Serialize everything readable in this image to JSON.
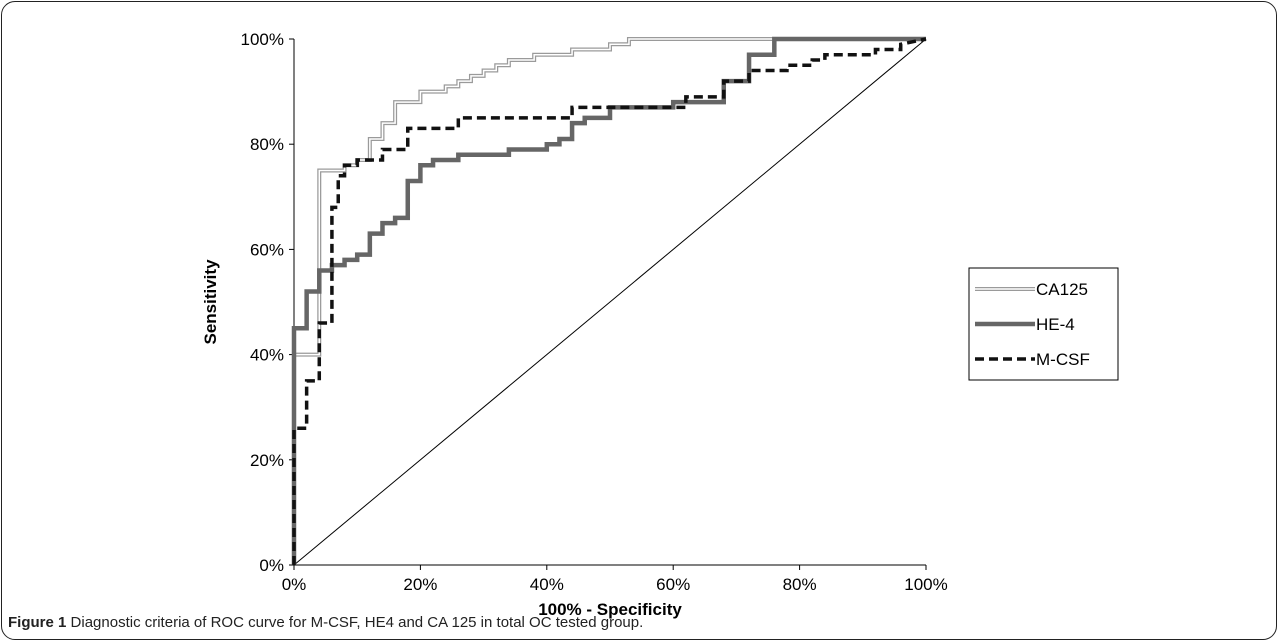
{
  "caption": {
    "label": "Figure 1",
    "text": "Diagnostic criteria of ROC curve for M-CSF, HE4 and CA 125 in total OC tested group."
  },
  "chart_data": {
    "type": "line",
    "xlabel": "100% - Specificity",
    "ylabel": "Sensitivity",
    "xlim": [
      0,
      100
    ],
    "ylim": [
      0,
      100
    ],
    "xticks": [
      "0%",
      "20%",
      "40%",
      "60%",
      "80%",
      "100%"
    ],
    "yticks": [
      "0%",
      "20%",
      "40%",
      "60%",
      "80%",
      "100%"
    ],
    "grid": false,
    "legend_position": "right",
    "reference_line": {
      "x": [
        0,
        100
      ],
      "y": [
        0,
        100
      ]
    },
    "series": [
      {
        "name": "CA125",
        "color": "#9a9a9a",
        "style": "double",
        "x": [
          0,
          0,
          4,
          4,
          8,
          8,
          10,
          10,
          12,
          12,
          14,
          14,
          16,
          16,
          20,
          20,
          24,
          24,
          26,
          26,
          28,
          28,
          30,
          30,
          32,
          32,
          34,
          34,
          38,
          38,
          44,
          44,
          50,
          50,
          53,
          53,
          76,
          76,
          100
        ],
        "y": [
          0,
          40,
          40,
          75,
          75,
          76,
          76,
          77,
          77,
          81,
          81,
          84,
          84,
          88,
          88,
          90,
          90,
          91,
          91,
          92,
          92,
          93,
          93,
          94,
          94,
          95,
          95,
          96,
          96,
          97,
          97,
          98,
          98,
          99,
          99,
          100,
          100,
          100,
          100
        ]
      },
      {
        "name": "HE-4",
        "color": "#666666",
        "style": "solid-thick",
        "x": [
          0,
          0,
          2,
          2,
          4,
          4,
          6,
          6,
          8,
          8,
          10,
          10,
          12,
          12,
          14,
          14,
          16,
          16,
          18,
          18,
          20,
          20,
          22,
          22,
          26,
          26,
          34,
          34,
          36,
          36,
          40,
          40,
          42,
          42,
          44,
          44,
          46,
          46,
          50,
          50,
          56,
          56,
          60,
          60,
          68,
          68,
          72,
          72,
          74,
          74,
          76,
          76,
          100
        ],
        "y": [
          0,
          45,
          45,
          52,
          52,
          56,
          56,
          57,
          57,
          58,
          58,
          59,
          59,
          63,
          63,
          65,
          65,
          66,
          66,
          73,
          73,
          76,
          76,
          77,
          77,
          78,
          78,
          79,
          79,
          79,
          79,
          80,
          80,
          81,
          81,
          84,
          84,
          85,
          85,
          87,
          87,
          87,
          87,
          88,
          88,
          92,
          92,
          97,
          97,
          97,
          97,
          100,
          100
        ]
      },
      {
        "name": "M-CSF",
        "color": "#111111",
        "style": "dashed",
        "x": [
          0,
          0,
          2,
          2,
          4,
          4,
          6,
          6,
          7,
          7,
          8,
          8,
          10,
          10,
          14,
          14,
          18,
          18,
          26,
          26,
          44,
          44,
          50,
          50,
          62,
          62,
          68,
          68,
          72,
          72,
          78,
          78,
          82,
          82,
          84,
          84,
          92,
          92,
          96,
          96,
          100
        ],
        "y": [
          0,
          26,
          26,
          35,
          35,
          46,
          46,
          68,
          68,
          74,
          74,
          76,
          76,
          77,
          77,
          79,
          79,
          83,
          83,
          85,
          85,
          87,
          87,
          87,
          87,
          89,
          89,
          92,
          92,
          94,
          94,
          95,
          95,
          96,
          96,
          97,
          97,
          98,
          98,
          99,
          100
        ]
      }
    ]
  }
}
